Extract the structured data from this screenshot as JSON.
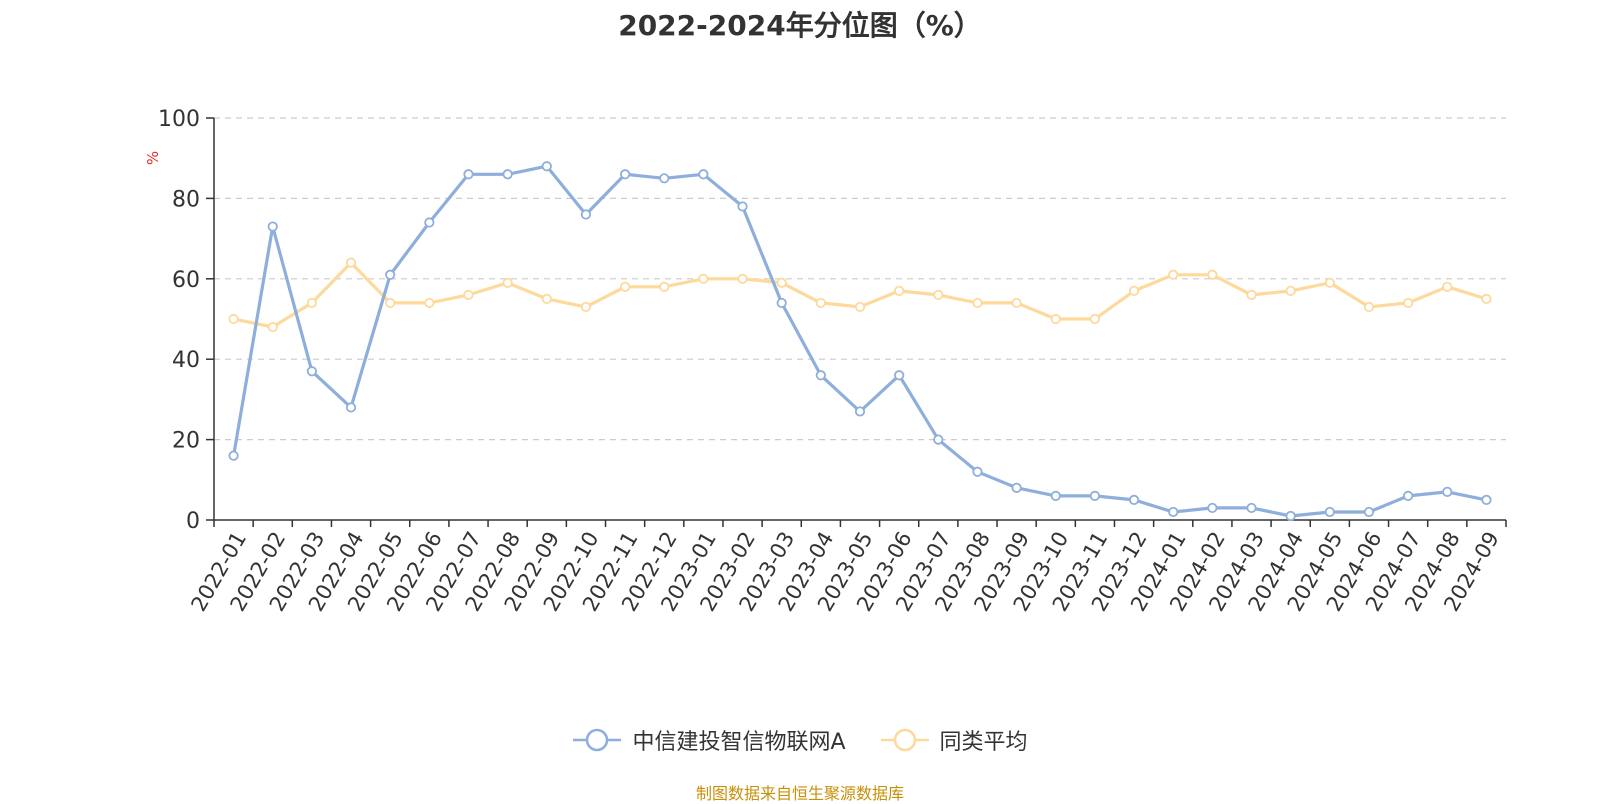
{
  "chart_data": {
    "type": "line",
    "title": "2022-2024年分位图（%）",
    "ylabel": "%",
    "xlabel": "",
    "ylim": [
      0,
      100
    ],
    "yticks": [
      0,
      20,
      40,
      60,
      80,
      100
    ],
    "grid": true,
    "legend_position": "bottom-center",
    "x": [
      "2022-01",
      "2022-02",
      "2022-03",
      "2022-04",
      "2022-05",
      "2022-06",
      "2022-07",
      "2022-08",
      "2022-09",
      "2022-10",
      "2022-11",
      "2022-12",
      "2023-01",
      "2023-02",
      "2023-03",
      "2023-04",
      "2023-05",
      "2023-06",
      "2023-07",
      "2023-08",
      "2023-09",
      "2023-10",
      "2023-11",
      "2023-12",
      "2024-01",
      "2024-02",
      "2024-03",
      "2024-04",
      "2024-05",
      "2024-06",
      "2024-07",
      "2024-08",
      "2024-09"
    ],
    "series": [
      {
        "name": "中信建投智信物联网A",
        "color": "#8eaedc",
        "values": [
          16,
          73,
          37,
          28,
          61,
          74,
          86,
          86,
          88,
          76,
          86,
          85,
          86,
          78,
          54,
          36,
          27,
          36,
          20,
          12,
          8,
          6,
          6,
          5,
          2,
          3,
          3,
          1,
          2,
          2,
          6,
          7,
          5
        ]
      },
      {
        "name": "同类平均",
        "color": "#fdd99b",
        "values": [
          50,
          48,
          54,
          64,
          54,
          54,
          56,
          59,
          55,
          53,
          58,
          58,
          60,
          60,
          59,
          54,
          53,
          57,
          56,
          54,
          54,
          50,
          50,
          57,
          61,
          61,
          56,
          57,
          59,
          53,
          54,
          58,
          55
        ]
      }
    ]
  },
  "source_note": "制图数据来自恒生聚源数据库",
  "colors": {
    "axis": "#333333",
    "grid": "#cccccc",
    "unit_label": "#e0302a",
    "source": "#c8900a"
  }
}
